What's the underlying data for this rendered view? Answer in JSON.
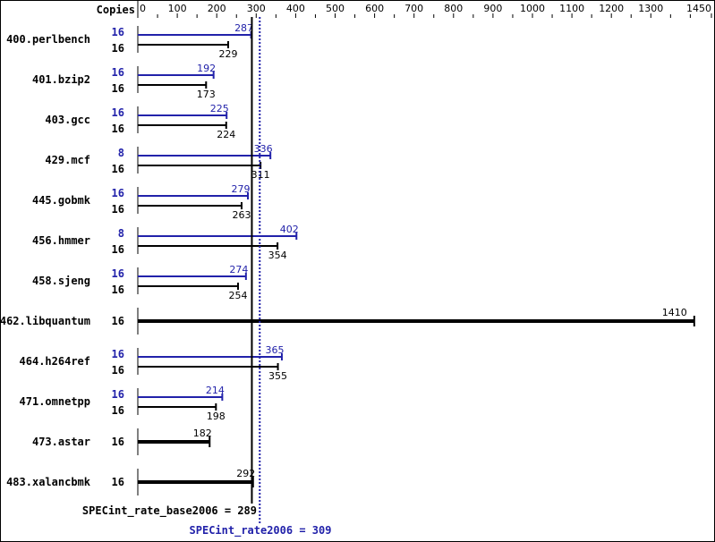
{
  "chart_data": {
    "type": "bar",
    "orientation": "horizontal",
    "copies_header": "Copies",
    "x_ticks": [
      0,
      100,
      200,
      300,
      400,
      500,
      600,
      700,
      800,
      900,
      1000,
      1100,
      1200,
      1300,
      1450
    ],
    "xlim": [
      0,
      1450
    ],
    "benchmarks": [
      {
        "name": "400.perlbench",
        "peak_copies": "16",
        "peak": 287,
        "base_copies": "16",
        "base": 229
      },
      {
        "name": "401.bzip2",
        "peak_copies": "16",
        "peak": 192,
        "base_copies": "16",
        "base": 173
      },
      {
        "name": "403.gcc",
        "peak_copies": "16",
        "peak": 225,
        "base_copies": "16",
        "base": 224
      },
      {
        "name": "429.mcf",
        "peak_copies": "8",
        "peak": 336,
        "base_copies": "16",
        "base": 311
      },
      {
        "name": "445.gobmk",
        "peak_copies": "16",
        "peak": 279,
        "base_copies": "16",
        "base": 263
      },
      {
        "name": "456.hmmer",
        "peak_copies": "8",
        "peak": 402,
        "base_copies": "16",
        "base": 354
      },
      {
        "name": "458.sjeng",
        "peak_copies": "16",
        "peak": 274,
        "base_copies": "16",
        "base": 254
      },
      {
        "name": "462.libquantum",
        "base_copies": "16",
        "base": 1410,
        "single": true
      },
      {
        "name": "464.h264ref",
        "peak_copies": "16",
        "peak": 365,
        "base_copies": "16",
        "base": 355
      },
      {
        "name": "471.omnetpp",
        "peak_copies": "16",
        "peak": 214,
        "base_copies": "16",
        "base": 198
      },
      {
        "name": "473.astar",
        "base_copies": "16",
        "base": 182,
        "single": true
      },
      {
        "name": "483.xalancbmk",
        "base_copies": "16",
        "base": 292,
        "single": true
      }
    ],
    "base_mean": {
      "label": "SPECint_rate_base2006 = 289",
      "value": 289
    },
    "peak_mean": {
      "label": "SPECint_rate2006 = 309",
      "value": 309
    },
    "colors": {
      "base": "#000000",
      "peak": "#2222aa"
    }
  }
}
